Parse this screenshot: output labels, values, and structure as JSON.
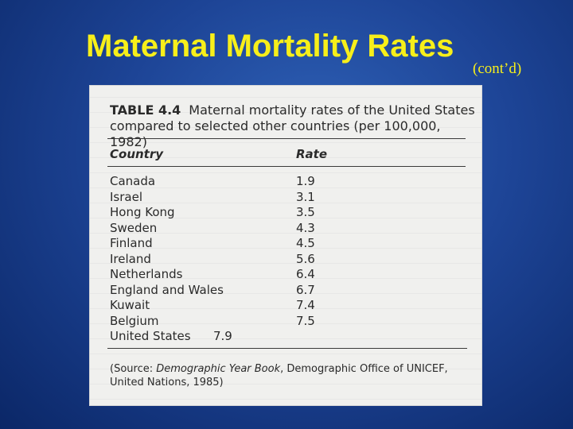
{
  "slide": {
    "title": "Maternal Mortality Rates",
    "subtitle": "(cont’d)"
  },
  "table": {
    "number": "TABLE 4.4",
    "caption_line1": "Maternal mortality rates of the United States",
    "caption_line2": "compared to selected other countries (per 100,000, 1982)",
    "headers": {
      "country": "Country",
      "rate": "Rate"
    },
    "rows": [
      {
        "country": "Canada",
        "rate": "1.9"
      },
      {
        "country": "Israel",
        "rate": "3.1"
      },
      {
        "country": "Hong Kong",
        "rate": "3.5"
      },
      {
        "country": "Sweden",
        "rate": "4.3"
      },
      {
        "country": "Finland",
        "rate": "4.5"
      },
      {
        "country": "Ireland",
        "rate": "5.6"
      },
      {
        "country": "Netherlands",
        "rate": "6.4"
      },
      {
        "country": "England and Wales",
        "rate": "6.7"
      },
      {
        "country": "Kuwait",
        "rate": "7.4"
      },
      {
        "country": "Belgium",
        "rate": "7.5"
      },
      {
        "country": "United States",
        "rate": "7.9"
      }
    ],
    "source": {
      "prefix": "(Source: ",
      "publication": "Demographic Year Book",
      "rest": ", Demographic Office of UNICEF, United Nations, 1985)"
    }
  },
  "colors": {
    "title": "#f7ef1a",
    "background": "#1d4496",
    "paper": "#f0f0ee"
  }
}
